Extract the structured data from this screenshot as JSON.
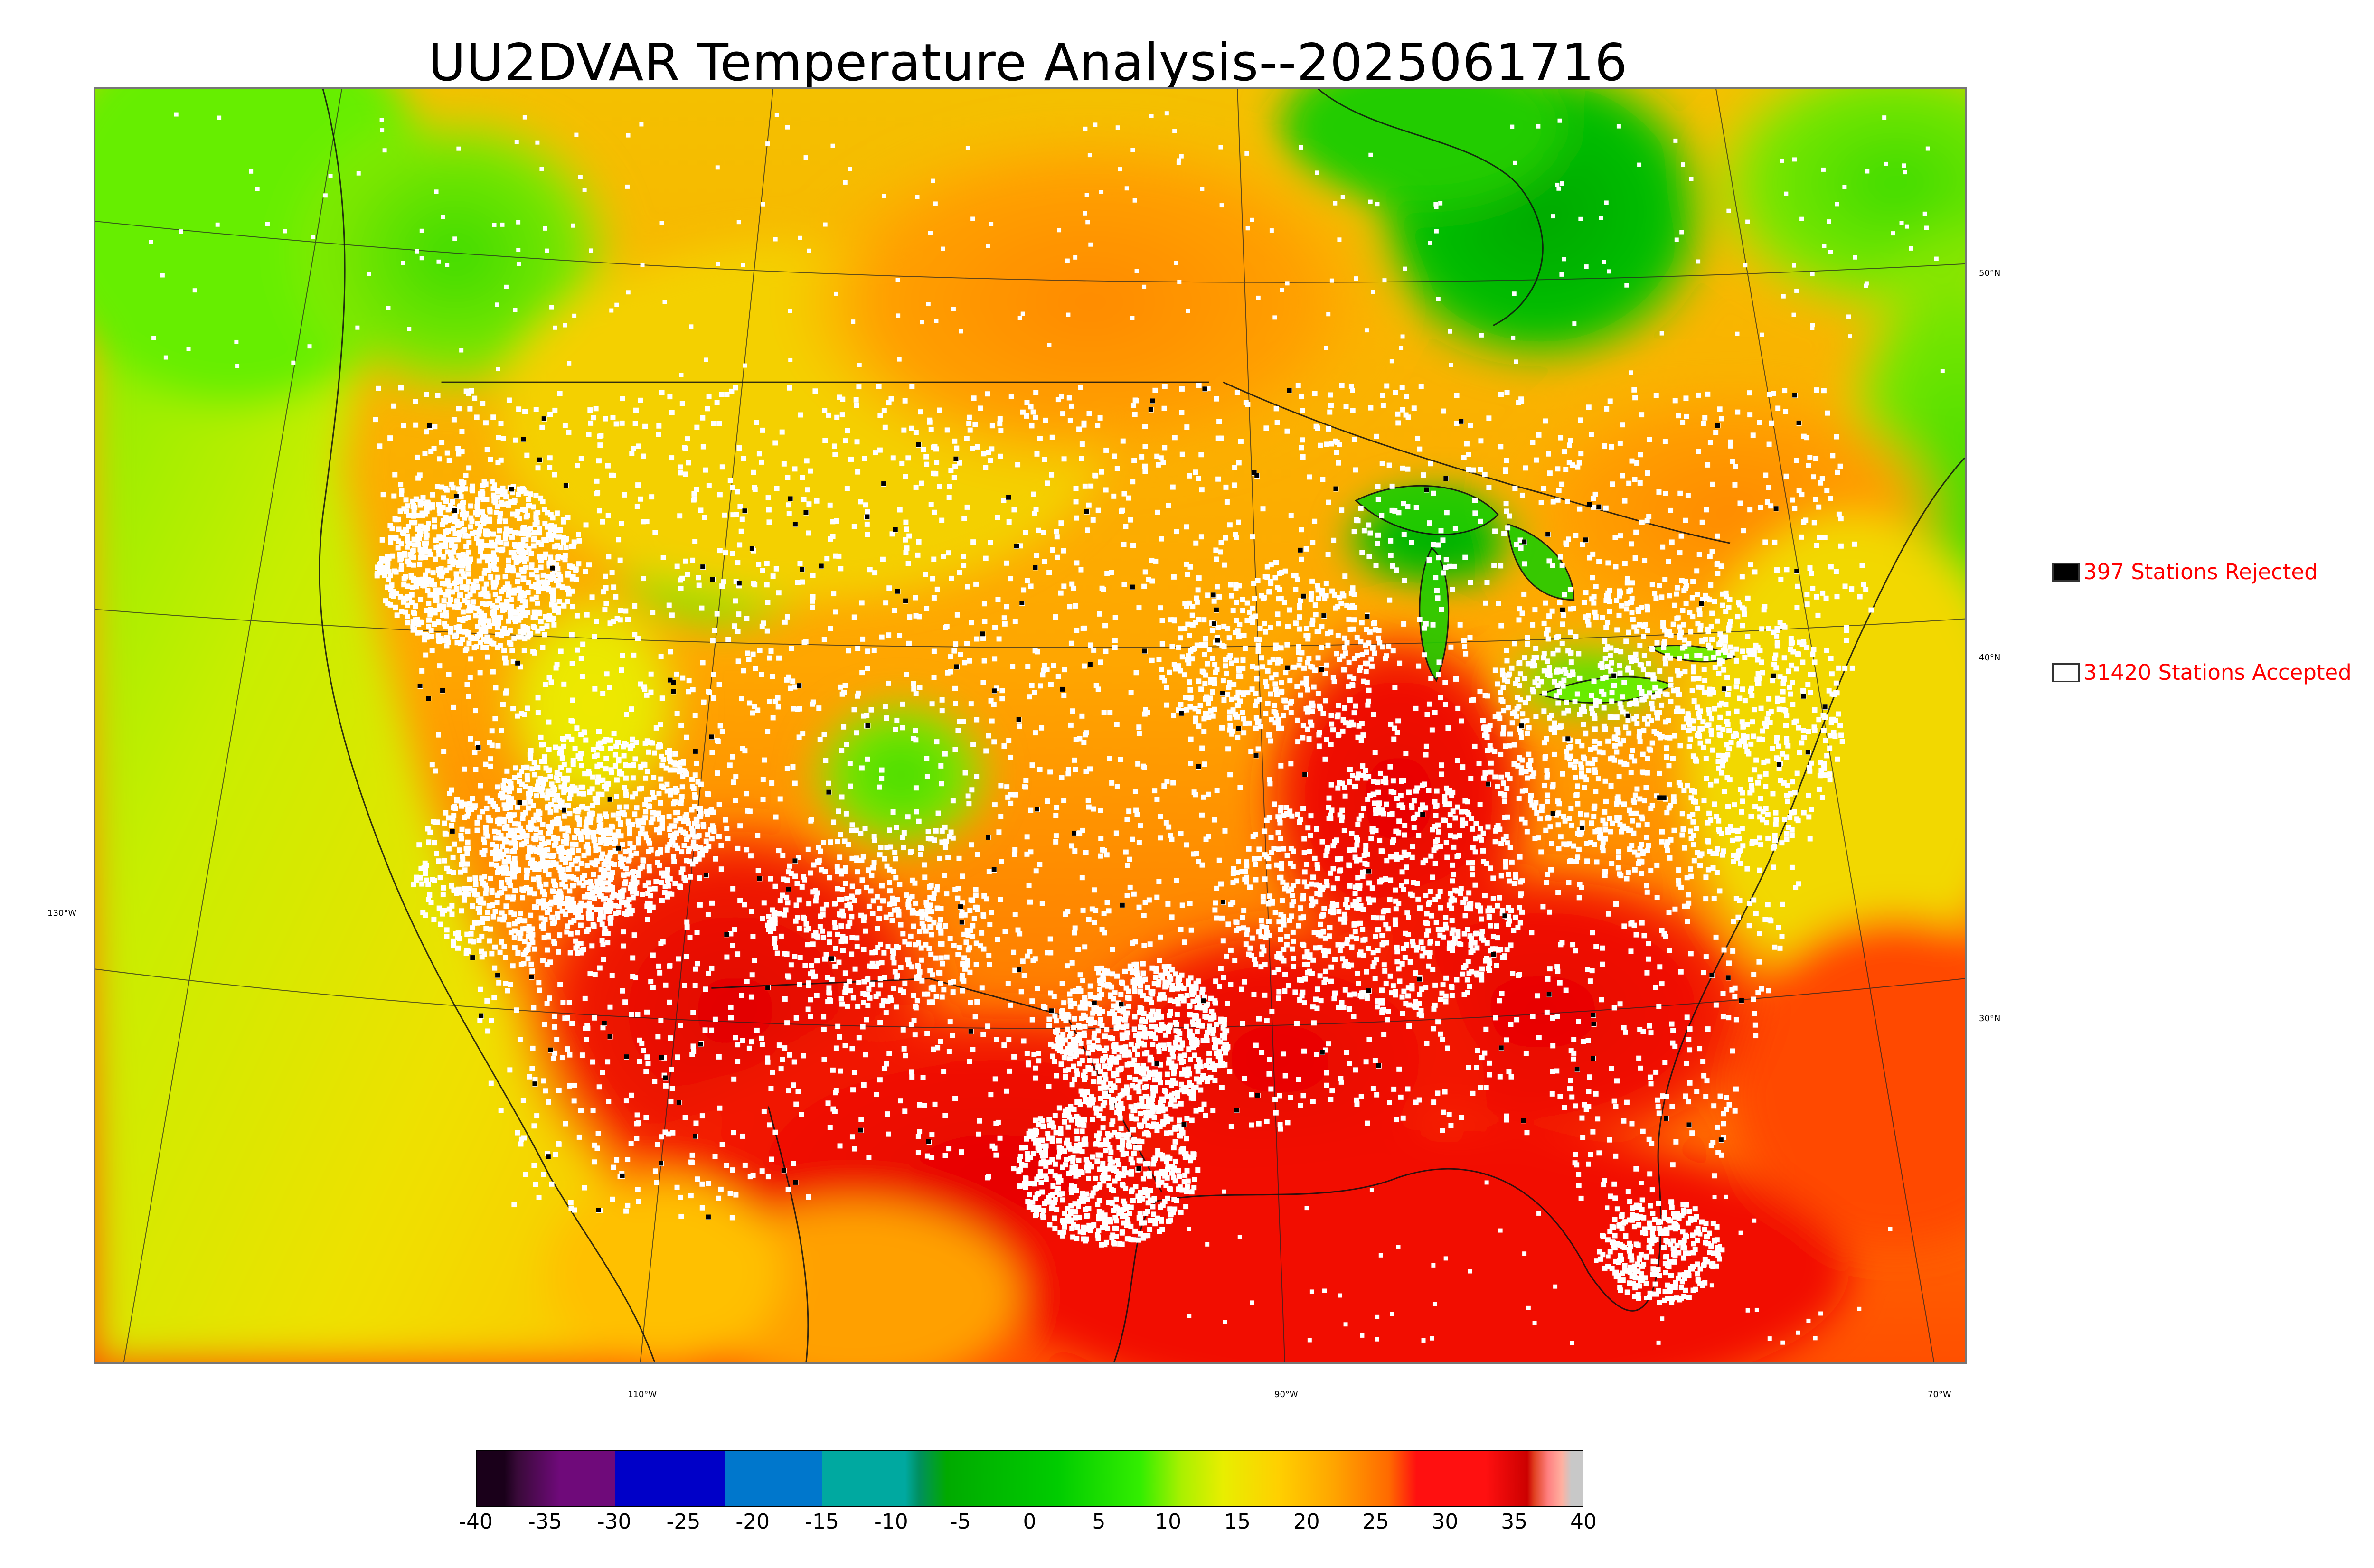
{
  "title": "UU2DVAR Temperature Analysis--2025061716",
  "map": {
    "latitude_labels": [
      "50°N",
      "40°N",
      "30°N"
    ],
    "longitude_labels": [
      "130°W",
      "110°W",
      "90°W",
      "70°W"
    ]
  },
  "legend": {
    "rejected": {
      "label": "397 Stations Rejected",
      "count": 397,
      "marker_color": "#000000"
    },
    "accepted": {
      "label": "31420 Stations Accepted",
      "count": 31420,
      "marker_color": "#ffffff"
    }
  },
  "colorbar": {
    "min": -40,
    "max": 40,
    "ticks": [
      "-40",
      "-35",
      "-30",
      "-25",
      "-20",
      "-15",
      "-10",
      "-5",
      "0",
      "5",
      "10",
      "15",
      "20",
      "25",
      "30",
      "35",
      "40"
    ],
    "colors": {
      "very_cold": "#1a001a",
      "purple": "#6f0a7a",
      "blue": "#0000c8",
      "light_blue": "#0077cc",
      "teal": "#00a9a0",
      "green": "#00aa00",
      "light_green": "#33ee00",
      "yellow": "#e8ee00",
      "orange": "#ffa500",
      "red": "#ff1010",
      "dark_red": "#cc0000",
      "pink_white": "#ffb0a0",
      "grey": "#c8c8c8"
    }
  },
  "colors": {
    "legend_text": "#ff0000",
    "station_accepted": "#ffffff",
    "station_rejected": "#000000"
  }
}
